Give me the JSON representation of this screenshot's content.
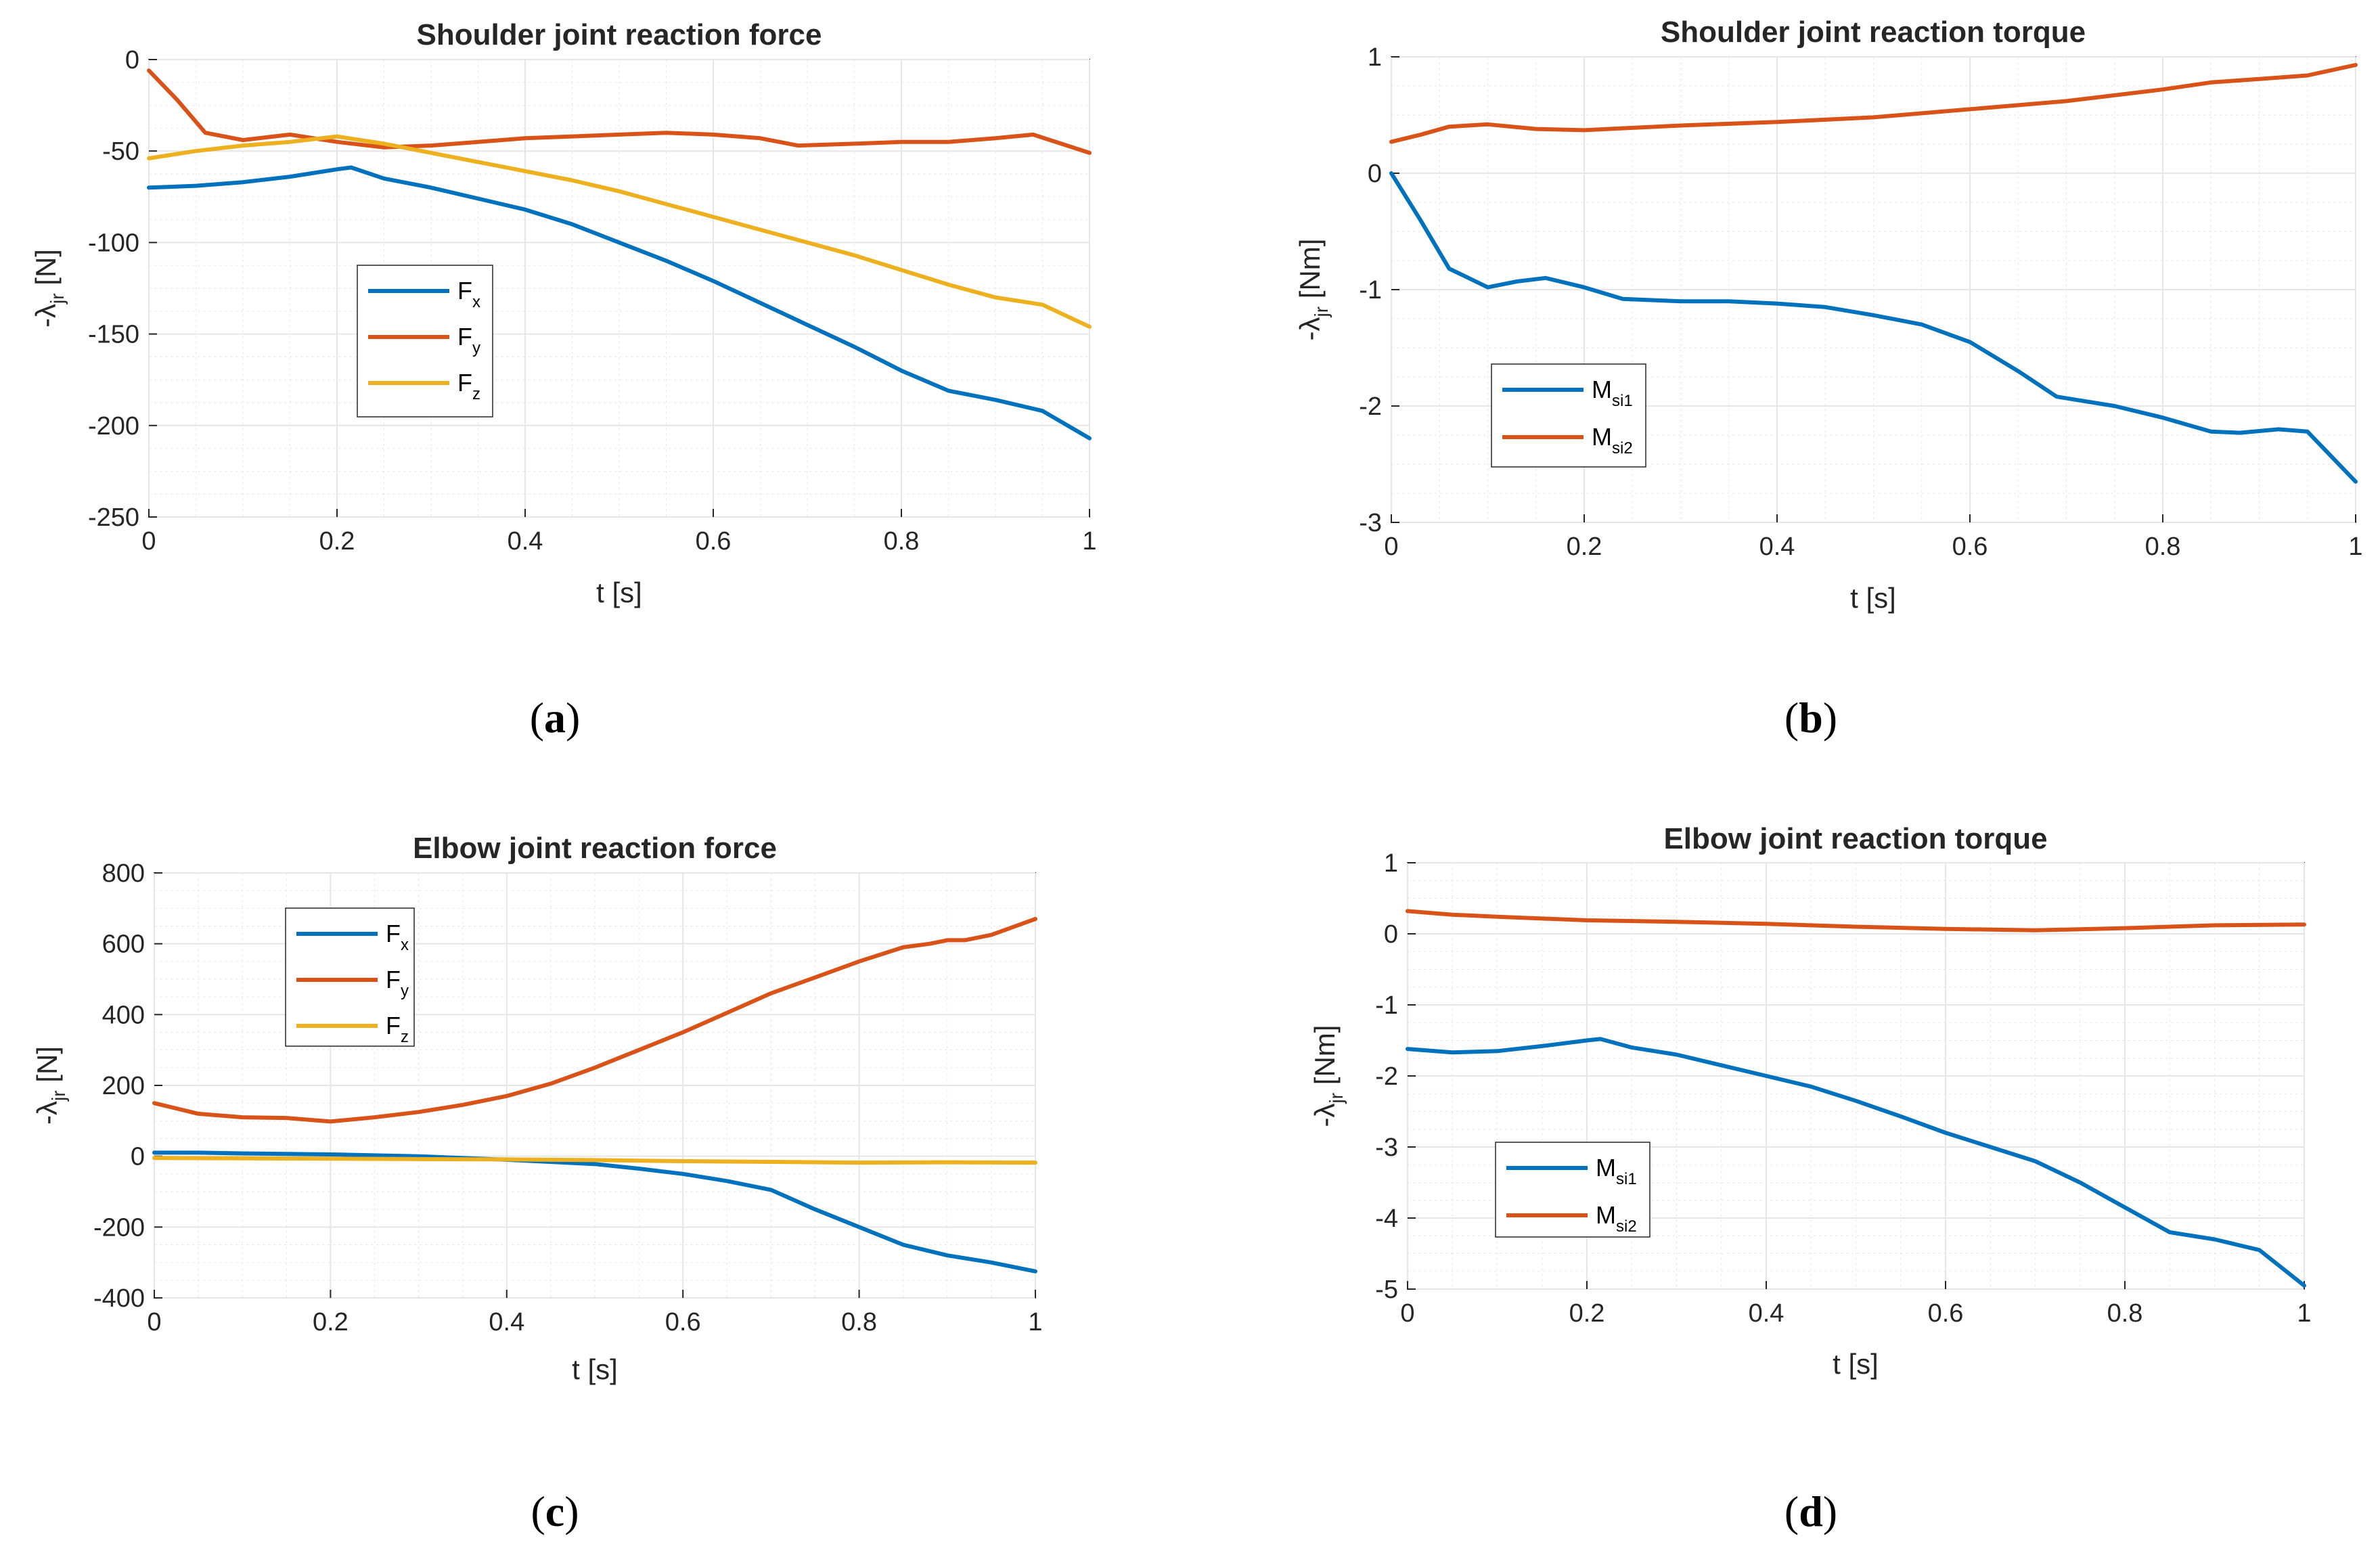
{
  "colors": {
    "blue": "#0072BD",
    "orange": "#D95319",
    "yellow": "#EDB120",
    "grid": "#e6e6e6",
    "axis": "#262626"
  },
  "chart_data": [
    {
      "id": "a",
      "caption_label": "a",
      "type": "line",
      "title": "Shoulder joint reaction force",
      "xlabel": "t [s]",
      "ylabel_main": "-λ",
      "ylabel_sub": "jr",
      "ylabel_unit": " [N]",
      "xlim": [
        0,
        1
      ],
      "ylim": [
        -250,
        0
      ],
      "xticks": [
        0,
        0.2,
        0.4,
        0.6,
        0.8,
        1
      ],
      "xtick_labels": [
        "0",
        "0.2",
        "0.4",
        "0.6",
        "0.8",
        "1"
      ],
      "yticks": [
        -250,
        -200,
        -150,
        -100,
        -50,
        0
      ],
      "ytick_labels": [
        "-250",
        "-200",
        "-150",
        "-100",
        "-50",
        "0"
      ],
      "legend_position": "left-middle",
      "series": [
        {
          "name": "F",
          "sub": "x",
          "color": "#0072BD",
          "x": [
            0,
            0.05,
            0.1,
            0.15,
            0.2,
            0.215,
            0.25,
            0.3,
            0.35,
            0.4,
            0.45,
            0.5,
            0.55,
            0.6,
            0.65,
            0.7,
            0.75,
            0.8,
            0.85,
            0.9,
            0.95,
            1
          ],
          "y": [
            -70,
            -69,
            -67,
            -64,
            -60,
            -59,
            -65,
            -70,
            -76,
            -82,
            -90,
            -100,
            -110,
            -121,
            -133,
            -145,
            -157,
            -170,
            -181,
            -186,
            -192,
            -207
          ]
        },
        {
          "name": "F",
          "sub": "y",
          "color": "#D95319",
          "x": [
            0,
            0.03,
            0.06,
            0.1,
            0.15,
            0.2,
            0.25,
            0.3,
            0.35,
            0.4,
            0.45,
            0.5,
            0.55,
            0.6,
            0.65,
            0.69,
            0.75,
            0.8,
            0.85,
            0.9,
            0.94,
            1
          ],
          "y": [
            -6,
            -22,
            -40,
            -44,
            -41,
            -45,
            -48,
            -47,
            -45,
            -43,
            -42,
            -41,
            -40,
            -41,
            -43,
            -47,
            -46,
            -45,
            -45,
            -43,
            -41,
            -51
          ]
        },
        {
          "name": "F",
          "sub": "z",
          "color": "#EDB120",
          "x": [
            0,
            0.05,
            0.1,
            0.15,
            0.2,
            0.25,
            0.3,
            0.35,
            0.4,
            0.45,
            0.5,
            0.55,
            0.6,
            0.65,
            0.7,
            0.75,
            0.8,
            0.85,
            0.9,
            0.95,
            1
          ],
          "y": [
            -54,
            -50,
            -47,
            -45,
            -42,
            -46,
            -51,
            -56,
            -61,
            -66,
            -72,
            -79,
            -86,
            -93,
            -100,
            -107,
            -115,
            -123,
            -130,
            -134,
            -146
          ]
        }
      ]
    },
    {
      "id": "b",
      "caption_label": "b",
      "type": "line",
      "title": "Shoulder joint reaction torque",
      "xlabel": "t [s]",
      "ylabel_main": "-λ",
      "ylabel_sub": "jr",
      "ylabel_unit": " [Nm]",
      "xlim": [
        0,
        1
      ],
      "ylim": [
        -3,
        1
      ],
      "xticks": [
        0,
        0.2,
        0.4,
        0.6,
        0.8,
        1
      ],
      "xtick_labels": [
        "0",
        "0.2",
        "0.4",
        "0.6",
        "0.8",
        "1"
      ],
      "yticks": [
        -3,
        -2,
        -1,
        0,
        1
      ],
      "ytick_labels": [
        "-3",
        "-2",
        "-1",
        "0",
        "1"
      ],
      "legend_position": "left-bottom",
      "series": [
        {
          "name": "M",
          "sub": "si1",
          "color": "#0072BD",
          "x": [
            0,
            0.03,
            0.06,
            0.1,
            0.13,
            0.16,
            0.2,
            0.24,
            0.3,
            0.35,
            0.4,
            0.45,
            0.5,
            0.55,
            0.6,
            0.65,
            0.69,
            0.75,
            0.8,
            0.85,
            0.88,
            0.92,
            0.95,
            1
          ],
          "y": [
            0,
            -0.4,
            -0.82,
            -0.98,
            -0.93,
            -0.9,
            -0.98,
            -1.08,
            -1.1,
            -1.1,
            -1.12,
            -1.15,
            -1.22,
            -1.3,
            -1.45,
            -1.7,
            -1.92,
            -2.0,
            -2.1,
            -2.22,
            -2.23,
            -2.2,
            -2.22,
            -2.65
          ]
        },
        {
          "name": "M",
          "sub": "si2",
          "color": "#D95319",
          "x": [
            0,
            0.03,
            0.06,
            0.1,
            0.15,
            0.2,
            0.25,
            0.3,
            0.4,
            0.5,
            0.6,
            0.7,
            0.8,
            0.85,
            0.9,
            0.95,
            1
          ],
          "y": [
            0.27,
            0.33,
            0.4,
            0.42,
            0.38,
            0.37,
            0.39,
            0.41,
            0.44,
            0.48,
            0.55,
            0.62,
            0.72,
            0.78,
            0.81,
            0.84,
            0.93
          ]
        }
      ]
    },
    {
      "id": "c",
      "caption_label": "c",
      "type": "line",
      "title": "Elbow joint reaction force",
      "xlabel": "t [s]",
      "ylabel_main": "-λ",
      "ylabel_sub": "jr",
      "ylabel_unit": " [N]",
      "xlim": [
        0,
        1
      ],
      "ylim": [
        -400,
        800
      ],
      "xticks": [
        0,
        0.2,
        0.4,
        0.6,
        0.8,
        1
      ],
      "xtick_labels": [
        "0",
        "0.2",
        "0.4",
        "0.6",
        "0.8",
        "1"
      ],
      "yticks": [
        -400,
        -200,
        0,
        200,
        400,
        600,
        800
      ],
      "ytick_labels": [
        "-400",
        "-200",
        "0",
        "200",
        "400",
        "600",
        "800"
      ],
      "legend_position": "left-top",
      "series": [
        {
          "name": "F",
          "sub": "x",
          "color": "#0072BD",
          "x": [
            0,
            0.05,
            0.1,
            0.2,
            0.3,
            0.4,
            0.5,
            0.55,
            0.6,
            0.65,
            0.7,
            0.75,
            0.8,
            0.85,
            0.9,
            0.95,
            1
          ],
          "y": [
            10,
            10,
            8,
            5,
            0,
            -10,
            -22,
            -35,
            -50,
            -70,
            -95,
            -150,
            -200,
            -250,
            -280,
            -300,
            -325
          ]
        },
        {
          "name": "F",
          "sub": "y",
          "color": "#D95319",
          "x": [
            0,
            0.05,
            0.1,
            0.15,
            0.2,
            0.25,
            0.3,
            0.35,
            0.4,
            0.45,
            0.5,
            0.55,
            0.6,
            0.65,
            0.7,
            0.75,
            0.8,
            0.85,
            0.88,
            0.9,
            0.92,
            0.95,
            1
          ],
          "y": [
            150,
            120,
            110,
            108,
            98,
            110,
            125,
            145,
            170,
            205,
            250,
            300,
            350,
            405,
            460,
            505,
            550,
            590,
            600,
            610,
            610,
            625,
            670
          ]
        },
        {
          "name": "F",
          "sub": "z",
          "color": "#EDB120",
          "x": [
            0,
            0.1,
            0.2,
            0.3,
            0.4,
            0.5,
            0.6,
            0.7,
            0.8,
            0.9,
            1
          ],
          "y": [
            -5,
            -6,
            -7,
            -8,
            -9,
            -11,
            -14,
            -16,
            -18,
            -17,
            -18
          ]
        }
      ]
    },
    {
      "id": "d",
      "caption_label": "d",
      "type": "line",
      "title": "Elbow joint reaction torque",
      "xlabel": "t [s]",
      "ylabel_main": "-λ",
      "ylabel_sub": "jr",
      "ylabel_unit": " [Nm]",
      "xlim": [
        0,
        1
      ],
      "ylim": [
        -5,
        1
      ],
      "xticks": [
        0,
        0.2,
        0.4,
        0.6,
        0.8,
        1
      ],
      "xtick_labels": [
        "0",
        "0.2",
        "0.4",
        "0.6",
        "0.8",
        "1"
      ],
      "yticks": [
        -5,
        -4,
        -3,
        -2,
        -1,
        0,
        1
      ],
      "ytick_labels": [
        "-5",
        "-4",
        "-3",
        "-2",
        "-1",
        "0",
        "1"
      ],
      "legend_position": "left-bottom",
      "series": [
        {
          "name": "M",
          "sub": "si1",
          "color": "#0072BD",
          "x": [
            0,
            0.05,
            0.1,
            0.15,
            0.2,
            0.215,
            0.25,
            0.3,
            0.35,
            0.4,
            0.45,
            0.5,
            0.55,
            0.6,
            0.65,
            0.7,
            0.75,
            0.8,
            0.85,
            0.9,
            0.95,
            1
          ],
          "y": [
            -1.62,
            -1.67,
            -1.65,
            -1.58,
            -1.5,
            -1.48,
            -1.6,
            -1.7,
            -1.85,
            -2.0,
            -2.15,
            -2.35,
            -2.57,
            -2.8,
            -3.0,
            -3.2,
            -3.5,
            -3.85,
            -4.2,
            -4.3,
            -4.45,
            -4.95
          ]
        },
        {
          "name": "M",
          "sub": "si2",
          "color": "#D95319",
          "x": [
            0,
            0.05,
            0.1,
            0.2,
            0.3,
            0.4,
            0.5,
            0.6,
            0.7,
            0.8,
            0.9,
            1
          ],
          "y": [
            0.32,
            0.27,
            0.24,
            0.19,
            0.17,
            0.14,
            0.1,
            0.07,
            0.05,
            0.08,
            0.12,
            0.13
          ]
        }
      ]
    }
  ]
}
